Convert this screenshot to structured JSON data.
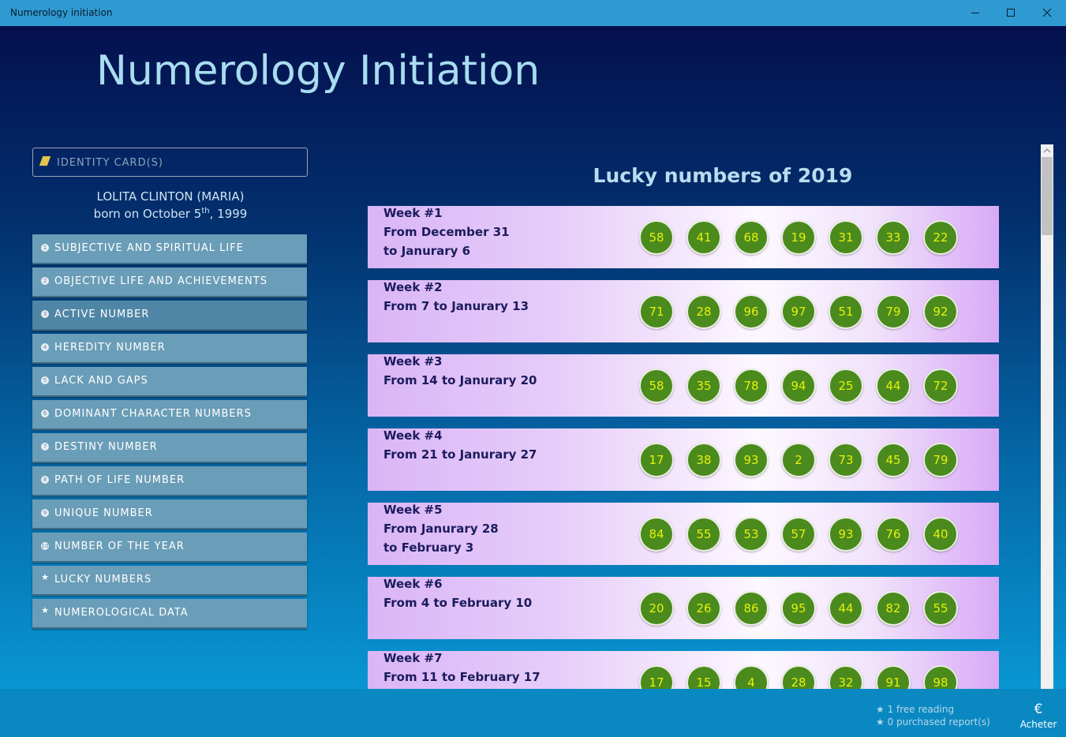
{
  "window": {
    "title": "Numerology initiation"
  },
  "header": {
    "title": "Numerology Initiation"
  },
  "sidebar": {
    "identity_button": "IDENTITY CARD(S)",
    "person": {
      "name": "LOLITA CLINTON (MARIA)",
      "born_prefix": "born on October 5",
      "born_suffix": "th",
      "born_year": ", 1999"
    },
    "menu": [
      {
        "icon": "1",
        "label": "SUBJECTIVE AND SPIRITUAL LIFE"
      },
      {
        "icon": "2",
        "label": "OBJECTIVE LIFE AND ACHIEVEMENTS"
      },
      {
        "icon": "3",
        "label": "ACTIVE NUMBER"
      },
      {
        "icon": "4",
        "label": "HEREDITY NUMBER"
      },
      {
        "icon": "5",
        "label": "LACK AND GAPS"
      },
      {
        "icon": "6",
        "label": "DOMINANT CHARACTER NUMBERS"
      },
      {
        "icon": "7",
        "label": "DESTINY NUMBER"
      },
      {
        "icon": "8",
        "label": "PATH OF LIFE NUMBER"
      },
      {
        "icon": "9",
        "label": "UNIQUE NUMBER"
      },
      {
        "icon": "10",
        "label": "NUMBER OF THE YEAR"
      },
      {
        "icon": "★",
        "label": "LUCKY NUMBERS"
      },
      {
        "icon": "★",
        "label": "NUMEROLOGICAL DATA"
      }
    ]
  },
  "content": {
    "title": "Lucky numbers of 2019",
    "weeks": [
      {
        "title": "Week #1",
        "lines": [
          "From December 31",
          "to Janurary 6"
        ],
        "numbers": [
          58,
          41,
          68,
          19,
          31,
          33,
          22
        ]
      },
      {
        "title": "Week #2",
        "lines": [
          "From 7 to Janurary 13"
        ],
        "numbers": [
          71,
          28,
          96,
          97,
          51,
          79,
          92
        ]
      },
      {
        "title": "Week #3",
        "lines": [
          "From 14 to Janurary 20"
        ],
        "numbers": [
          58,
          35,
          78,
          94,
          25,
          44,
          72
        ]
      },
      {
        "title": "Week #4",
        "lines": [
          "From 21 to Janurary 27"
        ],
        "numbers": [
          17,
          38,
          93,
          2,
          73,
          45,
          79
        ]
      },
      {
        "title": "Week #5",
        "lines": [
          "From Janurary 28",
          "to February 3"
        ],
        "numbers": [
          84,
          55,
          53,
          57,
          93,
          76,
          40
        ]
      },
      {
        "title": "Week #6",
        "lines": [
          "From 4 to February 10"
        ],
        "numbers": [
          20,
          26,
          86,
          95,
          44,
          82,
          55
        ]
      },
      {
        "title": "Week #7",
        "lines": [
          "From 11 to February 17"
        ],
        "numbers": [
          17,
          15,
          4,
          28,
          32,
          91,
          98
        ]
      }
    ]
  },
  "footer": {
    "free": "★ 1 free reading",
    "purchased": "★ 0 purchased report(s)",
    "buy_icon": "€",
    "buy_label": "Acheter"
  }
}
